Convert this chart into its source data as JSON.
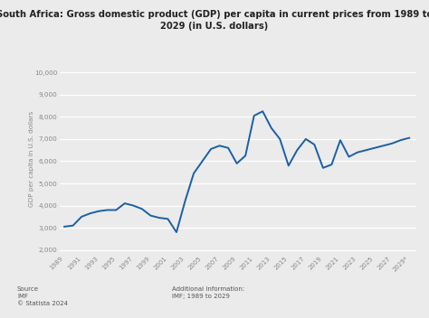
{
  "title_line1": "South Africa: Gross domestic product (GDP) per capita in current prices from 1989 to",
  "title_line2": "2029 (in U.S. dollars)",
  "ylabel": "GDP per capita in U.S. dollars",
  "background_color": "#ebebeb",
  "plot_bg_color": "#ebebeb",
  "line_color": "#1a5fa8",
  "years": [
    1989,
    1990,
    1991,
    1992,
    1993,
    1994,
    1995,
    1996,
    1997,
    1998,
    1999,
    2000,
    2001,
    2002,
    2003,
    2004,
    2005,
    2006,
    2007,
    2008,
    2009,
    2010,
    2011,
    2012,
    2013,
    2014,
    2015,
    2016,
    2017,
    2018,
    2019,
    2020,
    2021,
    2022,
    2023,
    2024,
    2025,
    2026,
    2027,
    2028,
    2029
  ],
  "values": [
    3050,
    3100,
    3500,
    3650,
    3750,
    3800,
    3800,
    4100,
    4000,
    3850,
    3550,
    3450,
    3400,
    2800,
    4200,
    5450,
    6000,
    6550,
    6700,
    6600,
    5900,
    6250,
    8050,
    8250,
    7500,
    7000,
    5800,
    6500,
    7000,
    6750,
    5700,
    5850,
    6950,
    6200,
    6400,
    6500,
    6600,
    6700,
    6800,
    6950,
    7050
  ],
  "yticks": [
    2000,
    3000,
    4000,
    5000,
    6000,
    7000,
    8000,
    9000,
    10000
  ],
  "ylim": [
    1800,
    10400
  ],
  "xlim_min": 1988.5,
  "xlim_max": 2029.8,
  "source_text": "Source\nIMF\n© Statista 2024",
  "additional_text": "Additional Information:\nIMF; 1989 to 2029"
}
